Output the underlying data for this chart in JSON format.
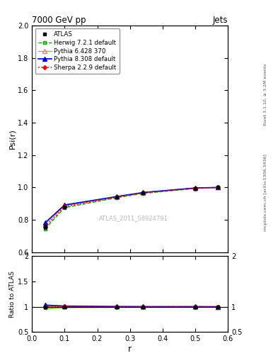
{
  "title_left": "7000 GeV pp",
  "title_right": "Jets",
  "ylabel_main": "Psi(r)",
  "ylabel_ratio": "Ratio to ATLAS",
  "xlabel": "r",
  "right_label_top": "Rivet 3.1.10, ≥ 3.2M events",
  "right_label_bottom": "mcplots.cern.ch [arXiv:1306.3436]",
  "watermark": "ATLAS_2011_S8924791",
  "ylim_main": [
    0.6,
    2.0
  ],
  "ylim_ratio": [
    0.5,
    2.0
  ],
  "xlim": [
    0.0,
    0.6
  ],
  "x_data": [
    0.04,
    0.1,
    0.26,
    0.34,
    0.5,
    0.57
  ],
  "atlas_y": [
    0.757,
    0.88,
    0.94,
    0.967,
    0.995,
    1.0
  ],
  "atlas_yerr": [
    0.012,
    0.008,
    0.005,
    0.004,
    0.003,
    0.001
  ],
  "herwig_y": [
    0.745,
    0.875,
    0.937,
    0.963,
    0.994,
    1.0
  ],
  "pythia6_y": [
    0.77,
    0.887,
    0.942,
    0.968,
    0.996,
    1.0
  ],
  "pythia8_y": [
    0.782,
    0.892,
    0.944,
    0.969,
    0.997,
    1.0
  ],
  "sherpa_y": [
    0.758,
    0.882,
    0.94,
    0.967,
    0.995,
    1.0
  ],
  "herwig_band_err": [
    0.02,
    0.008,
    0.004,
    0.003,
    0.002,
    0.001
  ],
  "atlas_band_err": [
    0.012,
    0.008,
    0.005,
    0.004,
    0.003,
    0.001
  ],
  "atlas_color": "#000000",
  "herwig_color": "#00aa00",
  "pythia6_color": "#ff8080",
  "pythia8_color": "#0000cc",
  "sherpa_color": "#ff0000",
  "legend_entries": [
    "ATLAS",
    "Herwig 7.2.1 default",
    "Pythia 6.428 370",
    "Pythia 8.308 default",
    "Sherpa 2.2.9 default"
  ]
}
